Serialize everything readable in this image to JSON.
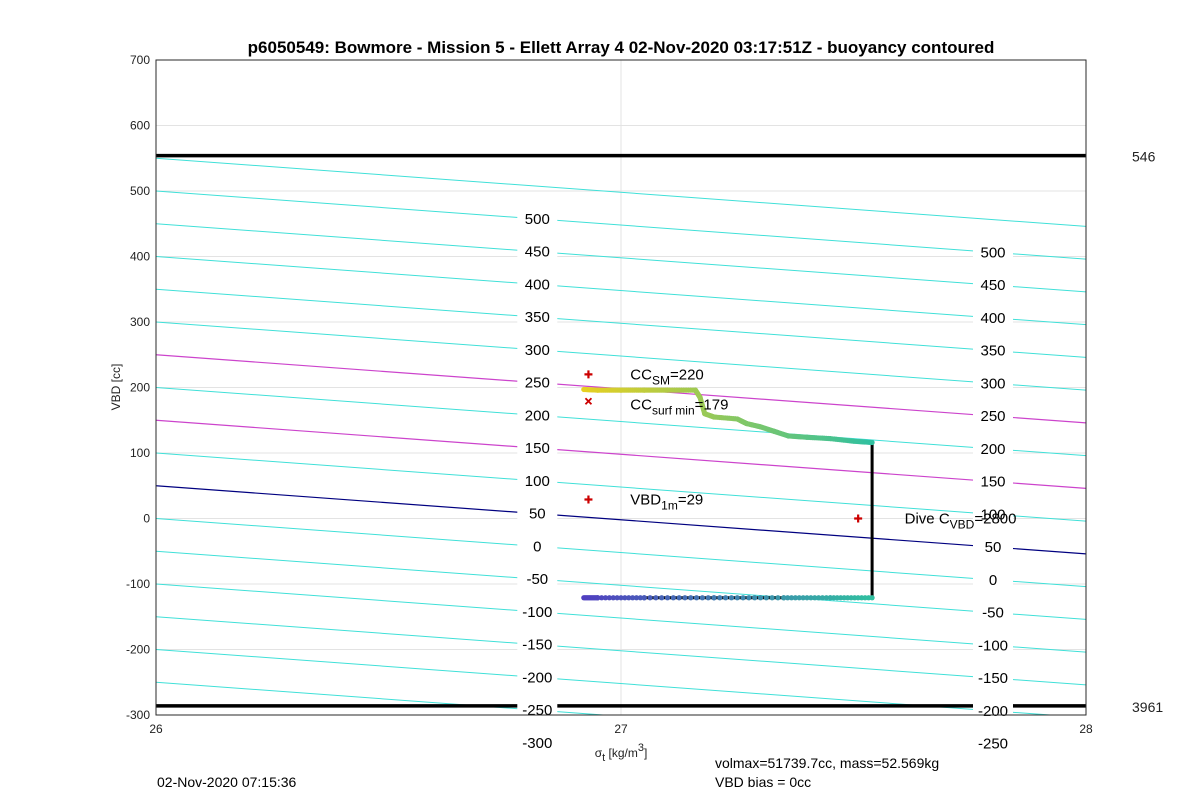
{
  "chart_data": {
    "type": "line",
    "title": "p6050549: Bowmore - Mission 5 - Ellett Array 4 02-Nov-2020 03:17:51Z - buoyancy contoured",
    "ylabel": "VBD [cc]",
    "xlabel_main": "σ",
    "xlabel_sub": "t",
    "xlabel_unit": " [kg/m",
    "xlabel_sup": "3",
    "xlabel_close": "]",
    "xlim": [
      26,
      28
    ],
    "ylim": [
      -300,
      700
    ],
    "xticks": [
      "26",
      "27",
      "28"
    ],
    "yticks": [
      "-300",
      "-200",
      "-100",
      "0",
      "100",
      "200",
      "300",
      "400",
      "500",
      "600",
      "700"
    ],
    "grid": true,
    "limit_lines": [
      {
        "y": 554,
        "label": "546"
      },
      {
        "y": -286,
        "label": "3961"
      }
    ],
    "buoyancy_contours": {
      "left_end_y_at_x26": [
        550,
        500,
        450,
        400,
        350,
        300,
        250,
        200,
        150,
        100,
        50,
        0,
        -50,
        -100,
        -150,
        -200,
        -250,
        -300
      ],
      "slope_cc_per_unit_sigma": -52,
      "highlight": {
        "250": "#cc44cc",
        "150": "#cc44cc",
        "50": "#000080"
      },
      "labels_middle": [
        "500",
        "450",
        "400",
        "350",
        "300",
        "250",
        "200",
        "150",
        "100",
        "50",
        "0",
        "-50",
        "-100",
        "-150",
        "-200",
        "-250",
        "-300"
      ],
      "labels_right": [
        "500",
        "450",
        "400",
        "350",
        "300",
        "250",
        "200",
        "150",
        "100",
        "50",
        "0",
        "-50",
        "-100",
        "-150",
        "-200",
        "-250"
      ]
    },
    "profile_points": [
      {
        "x": 26.92,
        "y": 197
      },
      {
        "x": 26.95,
        "y": 196
      },
      {
        "x": 27.0,
        "y": 196
      },
      {
        "x": 27.05,
        "y": 196
      },
      {
        "x": 27.1,
        "y": 196
      },
      {
        "x": 27.16,
        "y": 196
      },
      {
        "x": 27.17,
        "y": 185
      },
      {
        "x": 27.18,
        "y": 160
      },
      {
        "x": 27.2,
        "y": 155
      },
      {
        "x": 27.25,
        "y": 152
      },
      {
        "x": 27.27,
        "y": 145
      },
      {
        "x": 27.3,
        "y": 140
      },
      {
        "x": 27.33,
        "y": 133
      },
      {
        "x": 27.36,
        "y": 126
      },
      {
        "x": 27.4,
        "y": 124
      },
      {
        "x": 27.45,
        "y": 122
      },
      {
        "x": 27.5,
        "y": 118
      },
      {
        "x": 27.54,
        "y": 116
      },
      {
        "x": 27.54,
        "y": -121
      },
      {
        "x": 27.45,
        "y": -121
      },
      {
        "x": 27.35,
        "y": -121
      },
      {
        "x": 27.2,
        "y": -121
      },
      {
        "x": 27.05,
        "y": -121
      },
      {
        "x": 26.95,
        "y": -121
      },
      {
        "x": 26.92,
        "y": -121
      }
    ],
    "markers": [
      {
        "x": 26.93,
        "y": 220,
        "symbol": "+",
        "color": "#cc0000"
      },
      {
        "x": 26.93,
        "y": 179,
        "symbol": "x",
        "color": "#cc0000"
      },
      {
        "x": 26.93,
        "y": 29,
        "symbol": "+",
        "color": "#cc0000"
      },
      {
        "x": 27.51,
        "y": 0,
        "symbol": "+",
        "color": "#cc0000"
      }
    ],
    "annotations": [
      {
        "main": "CC",
        "sub": "SM",
        "rest": "=220",
        "x": 27.02,
        "y": 220
      },
      {
        "main": "CC",
        "sub": "surf min",
        "rest": "=179",
        "x": 27.02,
        "y": 174
      },
      {
        "main": "VBD",
        "sub": "1m",
        "rest": "=29",
        "x": 27.02,
        "y": 29
      },
      {
        "main": "Dive C",
        "sub": "VBD",
        "rest": "=2800",
        "x": 27.61,
        "y": 0
      }
    ],
    "colors": {
      "contour": "#40e0d8",
      "contour_magenta": "#cc44cc",
      "contour_navy": "#000080",
      "grid": "#e3e3e3",
      "limit": "#000000",
      "profile_top": "#e8d020",
      "profile_bottom": "#5040c0",
      "profile_mid": "#30c0a0"
    }
  },
  "footer": {
    "timestamp": "02-Nov-2020 07:15:36",
    "volmax": "volmax=51739.7cc, mass=52.569kg",
    "bias": "VBD bias = 0cc"
  }
}
